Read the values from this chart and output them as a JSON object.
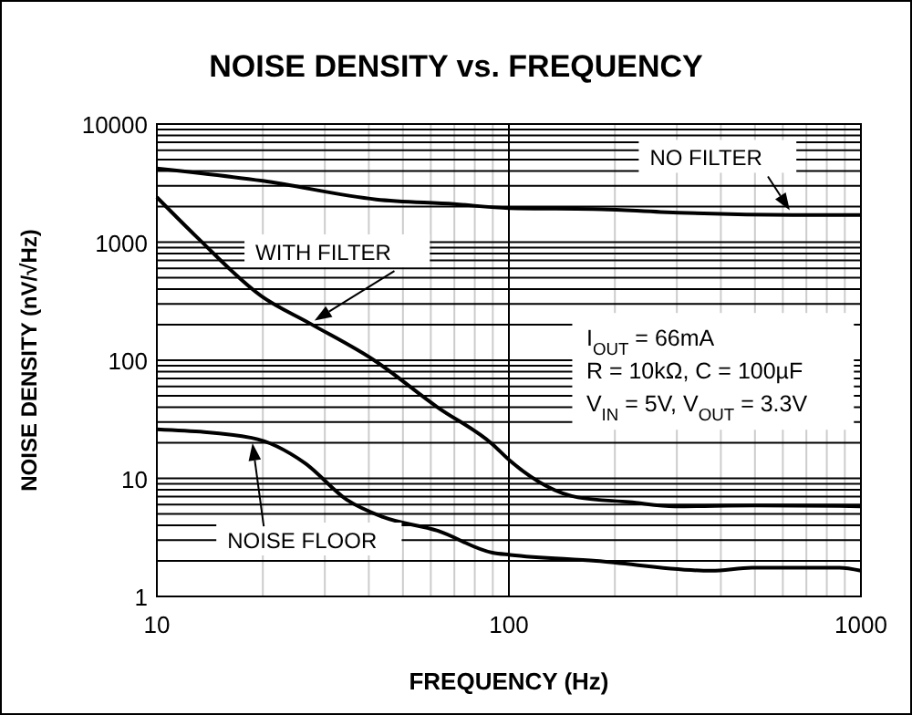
{
  "chart_data": {
    "type": "line",
    "title": "NOISE DENSITY vs. FREQUENCY",
    "xlabel": "FREQUENCY (Hz)",
    "ylabel": "NOISE DENSITY (nV/√Hz)",
    "log": "xy",
    "xlim": [
      10,
      1000
    ],
    "ylim": [
      1,
      10000
    ],
    "xticks": [
      10,
      {
        "value": 20,
        "label": null
      },
      {
        "value": 30,
        "label": null
      },
      {
        "value": 40,
        "label": null
      },
      {
        "value": 50,
        "label": null
      },
      {
        "value": 60,
        "label": null
      },
      {
        "value": 70,
        "label": null
      },
      {
        "value": 80,
        "label": null
      },
      {
        "value": 90,
        "label": null
      },
      100,
      {
        "value": 200,
        "label": null
      },
      {
        "value": 300,
        "label": null
      },
      {
        "value": 400,
        "label": null
      },
      {
        "value": 500,
        "label": null
      },
      {
        "value": 600,
        "label": null
      },
      {
        "value": 700,
        "label": null
      },
      {
        "value": 800,
        "label": null
      },
      {
        "value": 900,
        "label": null
      },
      1000
    ],
    "yticks": [
      1,
      {
        "value": 2,
        "label": null
      },
      {
        "value": 3,
        "label": null
      },
      {
        "value": 4,
        "label": null
      },
      {
        "value": 5,
        "label": null
      },
      {
        "value": 6,
        "label": null
      },
      {
        "value": 7,
        "label": null
      },
      {
        "value": 8,
        "label": null
      },
      {
        "value": 9,
        "label": null
      },
      10,
      {
        "value": 20,
        "label": null
      },
      {
        "value": 30,
        "label": null
      },
      {
        "value": 40,
        "label": null
      },
      {
        "value": 50,
        "label": null
      },
      {
        "value": 60,
        "label": null
      },
      {
        "value": 70,
        "label": null
      },
      {
        "value": 80,
        "label": null
      },
      {
        "value": 90,
        "label": null
      },
      100,
      {
        "value": 200,
        "label": null
      },
      {
        "value": 300,
        "label": null
      },
      {
        "value": 400,
        "label": null
      },
      {
        "value": 500,
        "label": null
      },
      {
        "value": 600,
        "label": null
      },
      {
        "value": 700,
        "label": null
      },
      {
        "value": 800,
        "label": null
      },
      {
        "value": 900,
        "label": null
      },
      1000,
      {
        "value": 2000,
        "label": null
      },
      {
        "value": 3000,
        "label": null
      },
      {
        "value": 4000,
        "label": null
      },
      {
        "value": 5000,
        "label": null
      },
      {
        "value": 6000,
        "label": null
      },
      {
        "value": 7000,
        "label": null
      },
      {
        "value": 8000,
        "label": null
      },
      {
        "value": 9000,
        "label": null
      },
      10000
    ],
    "grid": true,
    "marker": "none",
    "line_style": "solid",
    "series": [
      {
        "name": "NO FILTER",
        "color": "#000000",
        "x": [
          10,
          20,
          42,
          70,
          100,
          184,
          270,
          640,
          1000
        ],
        "values": [
          4200,
          3300,
          2300,
          2100,
          1940,
          1900,
          1800,
          1700,
          1700
        ]
      },
      {
        "name": "WITH FILTER",
        "color": "#000000",
        "x": [
          10,
          13,
          19.8,
          27.2,
          41.4,
          62.7,
          89.7,
          101,
          157,
          220,
          296,
          500,
          1000
        ],
        "values": [
          2400,
          1100,
          350,
          205,
          100,
          40,
          19.5,
          14,
          6.9,
          6.3,
          5.8,
          5.9,
          5.8
        ]
      },
      {
        "name": "NOISE FLOOR",
        "color": "#000000",
        "x": [
          10,
          18.6,
          26.3,
          34.6,
          43.9,
          62.7,
          89.7,
          101,
          177,
          376,
          490,
          868,
          1000
        ],
        "values": [
          26,
          22,
          13.5,
          6.6,
          4.7,
          3.6,
          2.35,
          2.25,
          2.0,
          1.65,
          1.75,
          1.75,
          1.65
        ]
      }
    ],
    "annotations": [
      "I$_{OUT}$ = 66mA",
      "R = 10kΩ, C = 100µF",
      "V$_{IN}$ = 5V, V$_{OUT}$ = 3.3V"
    ]
  }
}
